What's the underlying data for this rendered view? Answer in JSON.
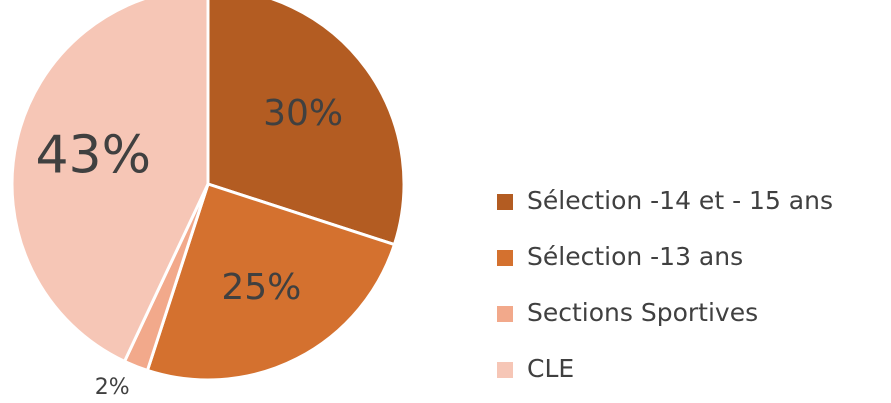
{
  "chart_data": {
    "type": "pie",
    "categories": [
      "Sélection -14 et - 15 ans",
      "Sélection -13 ans",
      "Sections Sportives",
      "CLE"
    ],
    "values": [
      30,
      25,
      2,
      43
    ],
    "value_labels": [
      "30%",
      "25%",
      "2%",
      "43%"
    ],
    "colors": [
      "#b35c22",
      "#d4712f",
      "#f2a98b",
      "#f6c6b6"
    ],
    "legend": "right"
  }
}
